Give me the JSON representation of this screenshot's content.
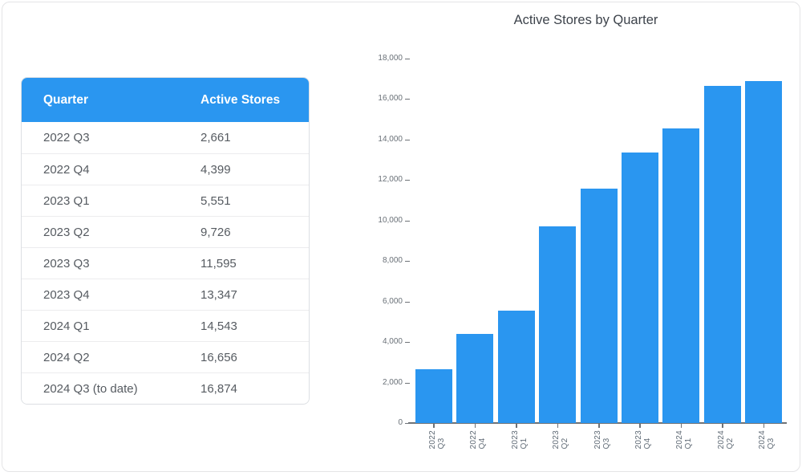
{
  "page": {
    "background": "#ffffff",
    "border_color": "#e4e4e6"
  },
  "table": {
    "headers": {
      "quarter": "Quarter",
      "active_stores": "Active Stores"
    },
    "header_bg": "#2a96f0",
    "header_text_color": "#ffffff",
    "rows": [
      {
        "quarter": "2022 Q3",
        "active_stores": "2,661"
      },
      {
        "quarter": "2022 Q4",
        "active_stores": "4,399"
      },
      {
        "quarter": "2023 Q1",
        "active_stores": "5,551"
      },
      {
        "quarter": "2023 Q2",
        "active_stores": "9,726"
      },
      {
        "quarter": "2023 Q3",
        "active_stores": "11,595"
      },
      {
        "quarter": "2023 Q4",
        "active_stores": "13,347"
      },
      {
        "quarter": "2024 Q1",
        "active_stores": "14,543"
      },
      {
        "quarter": "2024 Q2",
        "active_stores": "16,656"
      },
      {
        "quarter": "2024 Q3 (to date)",
        "active_stores": "16,874"
      }
    ]
  },
  "chart_data": {
    "type": "bar",
    "title": "Active Stores by Quarter",
    "categories": [
      "2022 Q3",
      "2022 Q4",
      "2023 Q1",
      "2023 Q2",
      "2023 Q3",
      "2023 Q4",
      "2024 Q1",
      "2024 Q2",
      "2024 Q3"
    ],
    "values": [
      2661,
      4399,
      5551,
      9726,
      11595,
      13347,
      14543,
      16656,
      16874
    ],
    "xlabel": "",
    "ylabel": "",
    "ylim": [
      0,
      18000
    ],
    "ytick_step": 2000,
    "bar_color": "#2a96f0",
    "axis_color": "#6e7277",
    "grid": false,
    "legend": "none",
    "x_tick_rotation": -90
  }
}
